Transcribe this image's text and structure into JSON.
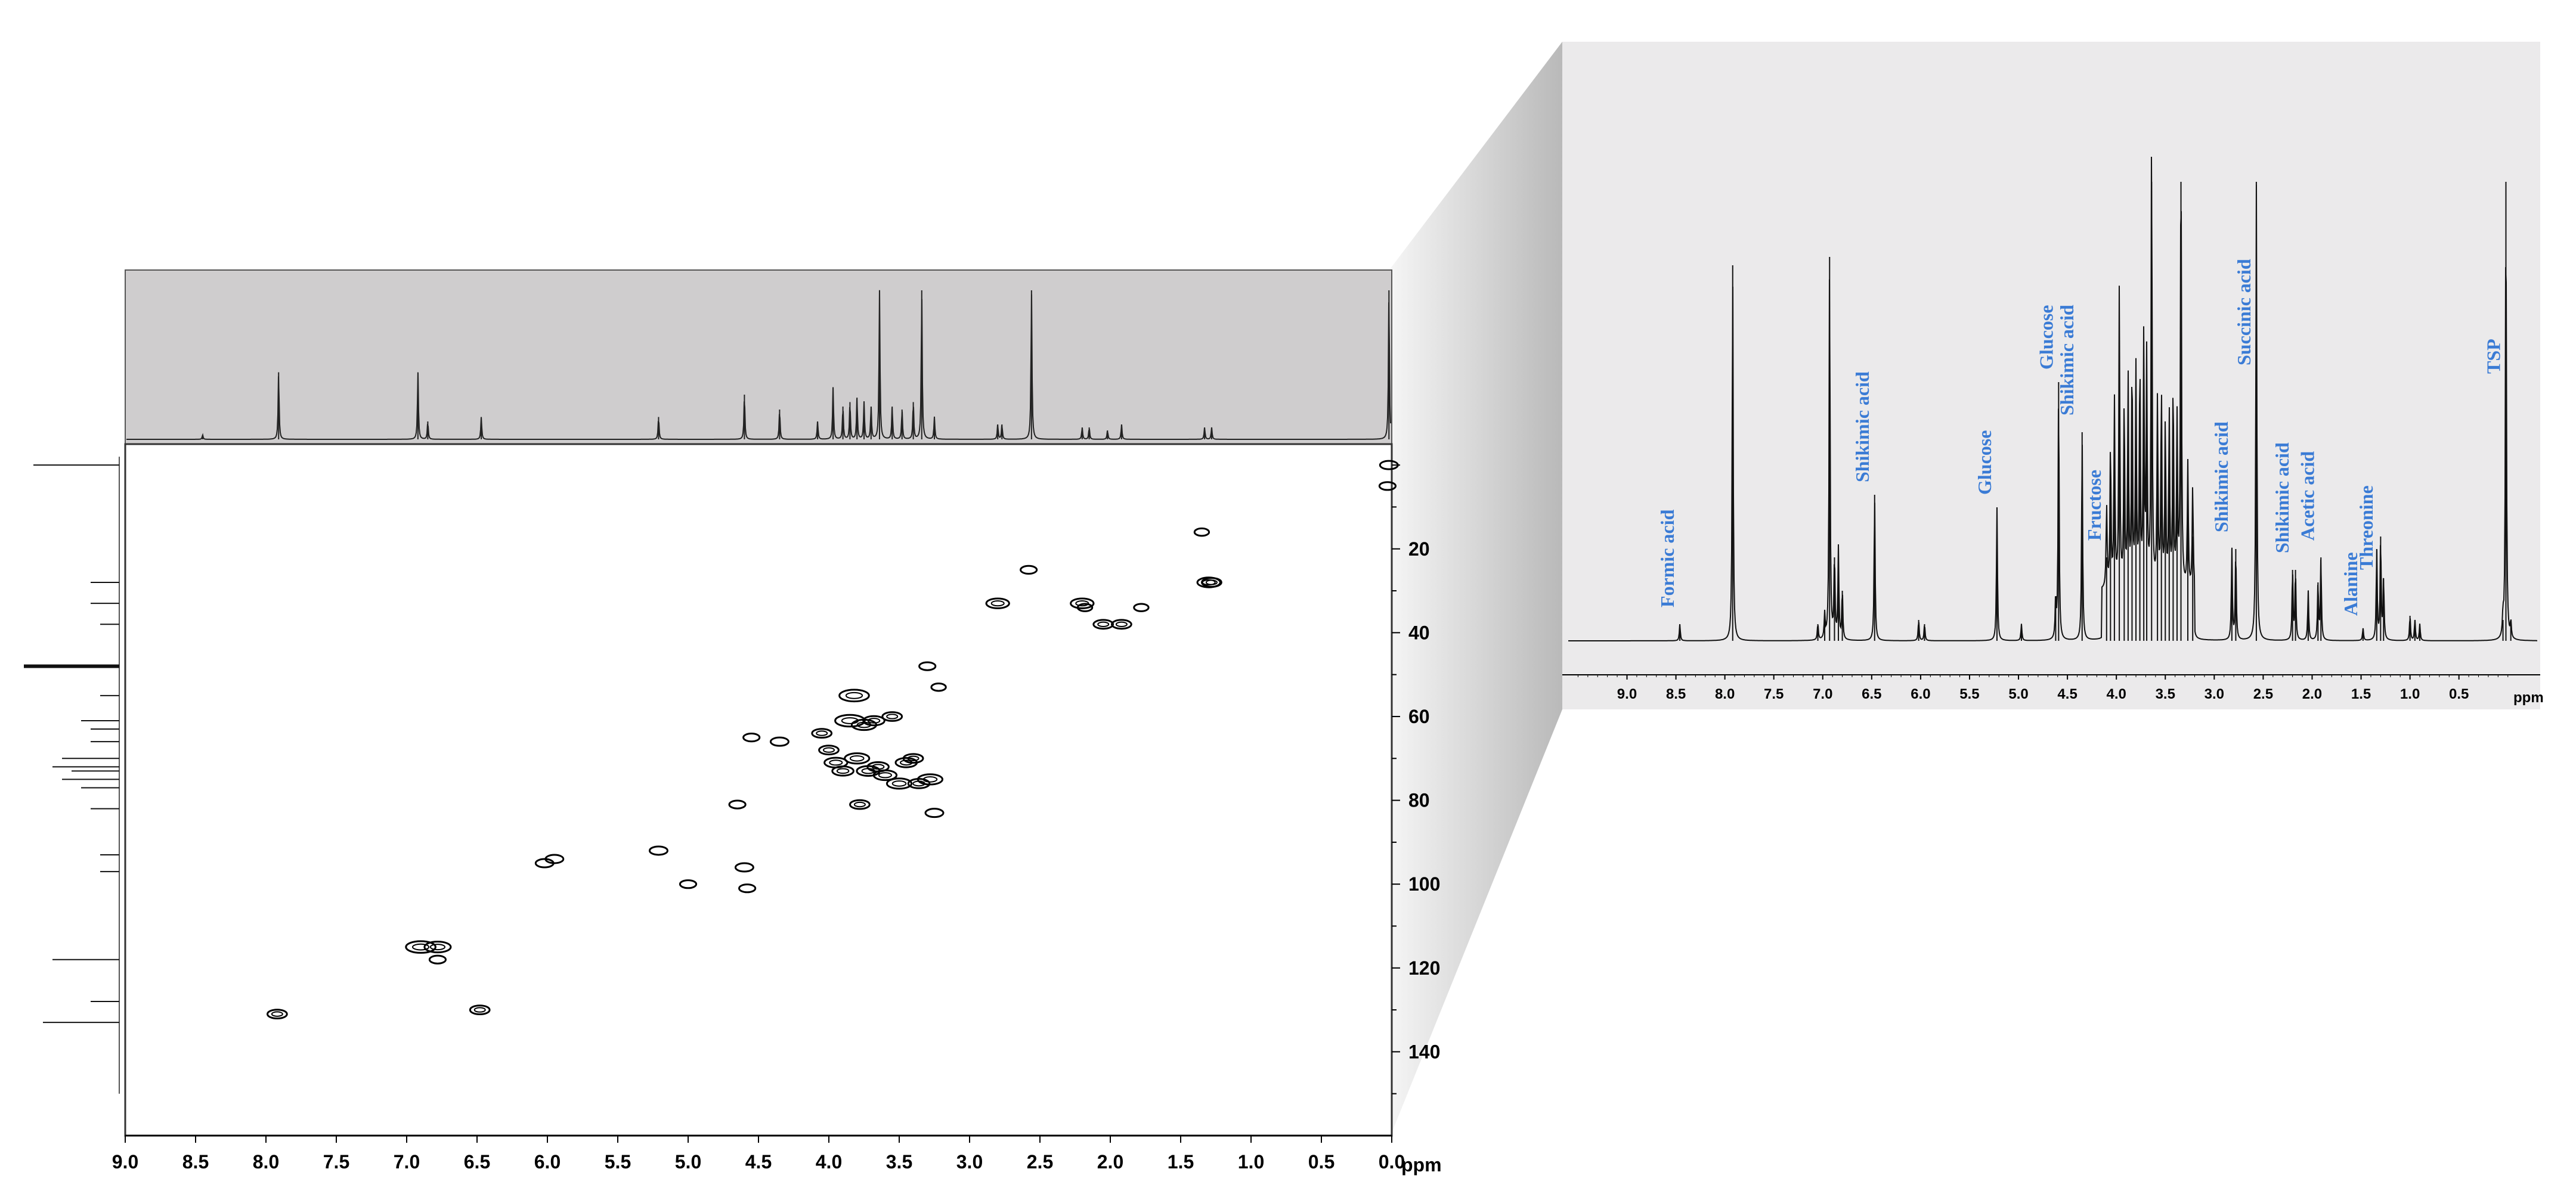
{
  "chart_data": [
    {
      "type": "heatmap",
      "subtype": "2D HSQC NMR contour plot with 1D projections",
      "x_axis": {
        "label": "ppm",
        "range": [
          9.0,
          0.0
        ],
        "reversed": true,
        "ticks": [
          "9.0",
          "8.5",
          "8.0",
          "7.5",
          "7.0",
          "6.5",
          "6.0",
          "5.5",
          "5.0",
          "4.5",
          "4.0",
          "3.5",
          "3.0",
          "2.5",
          "2.0",
          "1.5",
          "1.0",
          "0.5",
          "0.0"
        ]
      },
      "y_axis": {
        "label": "",
        "range": [
          -5,
          160
        ],
        "reversed": true,
        "position": "right",
        "ticks": [
          "20",
          "40",
          "60",
          "80",
          "100",
          "120",
          "140"
        ]
      },
      "grid": false,
      "top_projection_peaks": [
        {
          "ppm": 8.45,
          "h": 0.03
        },
        {
          "ppm": 7.91,
          "h": 0.45
        },
        {
          "ppm": 6.92,
          "h": 0.45
        },
        {
          "ppm": 6.85,
          "h": 0.12
        },
        {
          "ppm": 6.47,
          "h": 0.15
        },
        {
          "ppm": 5.21,
          "h": 0.15
        },
        {
          "ppm": 4.6,
          "h": 0.3
        },
        {
          "ppm": 4.35,
          "h": 0.2
        },
        {
          "ppm": 4.08,
          "h": 0.12
        },
        {
          "ppm": 3.97,
          "h": 0.35
        },
        {
          "ppm": 3.9,
          "h": 0.22
        },
        {
          "ppm": 3.85,
          "h": 0.25
        },
        {
          "ppm": 3.8,
          "h": 0.28
        },
        {
          "ppm": 3.75,
          "h": 0.25
        },
        {
          "ppm": 3.7,
          "h": 0.22
        },
        {
          "ppm": 3.64,
          "h": 1.0
        },
        {
          "ppm": 3.55,
          "h": 0.22
        },
        {
          "ppm": 3.48,
          "h": 0.2
        },
        {
          "ppm": 3.4,
          "h": 0.25
        },
        {
          "ppm": 3.34,
          "h": 1.0
        },
        {
          "ppm": 3.25,
          "h": 0.15
        },
        {
          "ppm": 2.8,
          "h": 0.1
        },
        {
          "ppm": 2.77,
          "h": 0.1
        },
        {
          "ppm": 2.56,
          "h": 1.0
        },
        {
          "ppm": 2.2,
          "h": 0.08
        },
        {
          "ppm": 2.15,
          "h": 0.08
        },
        {
          "ppm": 2.02,
          "h": 0.06
        },
        {
          "ppm": 1.92,
          "h": 0.1
        },
        {
          "ppm": 1.33,
          "h": 0.08
        },
        {
          "ppm": 1.28,
          "h": 0.08
        },
        {
          "ppm": 0.02,
          "h": 1.0
        }
      ],
      "left_projection_peaks": [
        {
          "ppm13c": 0,
          "h": 0.9
        },
        {
          "ppm13c": 28,
          "h": 0.3
        },
        {
          "ppm13c": 33,
          "h": 0.3
        },
        {
          "ppm13c": 38,
          "h": 0.2
        },
        {
          "ppm13c": 48,
          "h": 1.0
        },
        {
          "ppm13c": 55,
          "h": 0.2
        },
        {
          "ppm13c": 61,
          "h": 0.4
        },
        {
          "ppm13c": 63,
          "h": 0.3
        },
        {
          "ppm13c": 66,
          "h": 0.3
        },
        {
          "ppm13c": 70,
          "h": 0.6
        },
        {
          "ppm13c": 72,
          "h": 0.7
        },
        {
          "ppm13c": 73,
          "h": 0.5
        },
        {
          "ppm13c": 75,
          "h": 0.6
        },
        {
          "ppm13c": 77,
          "h": 0.4
        },
        {
          "ppm13c": 82,
          "h": 0.3
        },
        {
          "ppm13c": 93,
          "h": 0.2
        },
        {
          "ppm13c": 97,
          "h": 0.2
        },
        {
          "ppm13c": 118,
          "h": 0.7
        },
        {
          "ppm13c": 128,
          "h": 0.3
        },
        {
          "ppm13c": 133,
          "h": 0.8
        }
      ],
      "cross_peaks": [
        {
          "h1": 0.02,
          "c13": 0,
          "w": 0.5
        },
        {
          "h1": 0.03,
          "c13": 5,
          "w": 0.4
        },
        {
          "h1": 7.92,
          "c13": 131,
          "w": 0.6
        },
        {
          "h1": 6.9,
          "c13": 115,
          "w": 1.2
        },
        {
          "h1": 6.78,
          "c13": 115,
          "w": 1.0
        },
        {
          "h1": 6.78,
          "c13": 118,
          "w": 0.4
        },
        {
          "h1": 6.48,
          "c13": 130,
          "w": 0.6
        },
        {
          "h1": 6.02,
          "c13": 95,
          "w": 0.5
        },
        {
          "h1": 5.95,
          "c13": 94,
          "w": 0.5
        },
        {
          "h1": 5.21,
          "c13": 92,
          "w": 0.5
        },
        {
          "h1": 5.0,
          "c13": 100,
          "w": 0.4
        },
        {
          "h1": 4.65,
          "c13": 81,
          "w": 0.4
        },
        {
          "h1": 4.6,
          "c13": 96,
          "w": 0.5
        },
        {
          "h1": 4.58,
          "c13": 101,
          "w": 0.4
        },
        {
          "h1": 4.55,
          "c13": 65,
          "w": 0.4
        },
        {
          "h1": 4.35,
          "c13": 66,
          "w": 0.5
        },
        {
          "h1": 4.05,
          "c13": 64,
          "w": 0.6
        },
        {
          "h1": 4.0,
          "c13": 68,
          "w": 0.6
        },
        {
          "h1": 3.95,
          "c13": 71,
          "w": 0.8
        },
        {
          "h1": 3.9,
          "c13": 73,
          "w": 0.7
        },
        {
          "h1": 3.85,
          "c13": 61,
          "w": 1.2
        },
        {
          "h1": 3.82,
          "c13": 55,
          "w": 1.2
        },
        {
          "h1": 3.8,
          "c13": 70,
          "w": 0.9
        },
        {
          "h1": 3.78,
          "c13": 81,
          "w": 0.6
        },
        {
          "h1": 3.75,
          "c13": 62,
          "w": 0.9
        },
        {
          "h1": 3.72,
          "c13": 73,
          "w": 0.8
        },
        {
          "h1": 3.68,
          "c13": 61,
          "w": 0.7
        },
        {
          "h1": 3.65,
          "c13": 72,
          "w": 0.7
        },
        {
          "h1": 3.6,
          "c13": 74,
          "w": 0.8
        },
        {
          "h1": 3.55,
          "c13": 60,
          "w": 0.6
        },
        {
          "h1": 3.5,
          "c13": 76,
          "w": 0.9
        },
        {
          "h1": 3.45,
          "c13": 71,
          "w": 0.7
        },
        {
          "h1": 3.4,
          "c13": 70,
          "w": 0.6
        },
        {
          "h1": 3.36,
          "c13": 76,
          "w": 0.7
        },
        {
          "h1": 3.3,
          "c13": 48,
          "w": 0.4
        },
        {
          "h1": 3.28,
          "c13": 75,
          "w": 0.9
        },
        {
          "h1": 3.25,
          "c13": 83,
          "w": 0.5
        },
        {
          "h1": 3.22,
          "c13": 53,
          "w": 0.3
        },
        {
          "h1": 2.8,
          "c13": 33,
          "w": 0.8
        },
        {
          "h1": 2.58,
          "c13": 25,
          "w": 0.4
        },
        {
          "h1": 2.2,
          "c13": 33,
          "w": 0.8
        },
        {
          "h1": 2.18,
          "c13": 34,
          "w": 0.3
        },
        {
          "h1": 2.05,
          "c13": 38,
          "w": 0.6
        },
        {
          "h1": 1.92,
          "c13": 38,
          "w": 0.6
        },
        {
          "h1": 1.78,
          "c13": 34,
          "w": 0.3
        },
        {
          "h1": 1.35,
          "c13": 16,
          "w": 0.3
        },
        {
          "h1": 1.3,
          "c13": 28,
          "w": 0.8
        },
        {
          "h1": 1.28,
          "c13": 28,
          "w": 0.6
        }
      ]
    },
    {
      "type": "line",
      "subtype": "1D 1H NMR spectrum (zoomed inset)",
      "x_axis": {
        "label": "ppm",
        "range": [
          9.6,
          -0.3
        ],
        "reversed": true,
        "ticks": [
          "9.0",
          "8.5",
          "8.0",
          "7.5",
          "7.0",
          "6.5",
          "6.0",
          "5.5",
          "5.0",
          "4.5",
          "4.0",
          "3.5",
          "3.0",
          "2.5",
          "2.0",
          "1.5",
          "1.0",
          "0.5"
        ]
      },
      "grid": false,
      "peaks": [
        {
          "ppm": 8.46,
          "h": 0.04
        },
        {
          "ppm": 7.92,
          "h": 0.9
        },
        {
          "ppm": 7.05,
          "h": 0.04
        },
        {
          "ppm": 6.98,
          "h": 0.06
        },
        {
          "ppm": 6.93,
          "h": 0.92
        },
        {
          "ppm": 6.88,
          "h": 0.2
        },
        {
          "ppm": 6.84,
          "h": 0.22
        },
        {
          "ppm": 6.8,
          "h": 0.12
        },
        {
          "ppm": 6.47,
          "h": 0.35
        },
        {
          "ppm": 6.02,
          "h": 0.05
        },
        {
          "ppm": 5.96,
          "h": 0.04
        },
        {
          "ppm": 5.22,
          "h": 0.32
        },
        {
          "ppm": 4.97,
          "h": 0.04
        },
        {
          "ppm": 4.62,
          "h": 0.1
        },
        {
          "ppm": 4.59,
          "h": 0.62
        },
        {
          "ppm": 4.35,
          "h": 0.5
        },
        {
          "ppm": 4.1,
          "h": 0.2
        },
        {
          "ppm": 4.06,
          "h": 0.35
        },
        {
          "ppm": 4.02,
          "h": 0.45
        },
        {
          "ppm": 3.97,
          "h": 0.72
        },
        {
          "ppm": 3.92,
          "h": 0.45
        },
        {
          "ppm": 3.88,
          "h": 0.5
        },
        {
          "ppm": 3.84,
          "h": 0.55
        },
        {
          "ppm": 3.8,
          "h": 0.52
        },
        {
          "ppm": 3.76,
          "h": 0.55
        },
        {
          "ppm": 3.72,
          "h": 0.6
        },
        {
          "ppm": 3.69,
          "h": 0.55
        },
        {
          "ppm": 3.64,
          "h": 1.1
        },
        {
          "ppm": 3.58,
          "h": 0.45
        },
        {
          "ppm": 3.54,
          "h": 0.48
        },
        {
          "ppm": 3.5,
          "h": 0.4
        },
        {
          "ppm": 3.46,
          "h": 0.42
        },
        {
          "ppm": 3.42,
          "h": 0.5
        },
        {
          "ppm": 3.38,
          "h": 0.4
        },
        {
          "ppm": 3.34,
          "h": 1.1
        },
        {
          "ppm": 3.27,
          "h": 0.3
        },
        {
          "ppm": 3.22,
          "h": 0.25
        },
        {
          "ppm": 2.82,
          "h": 0.22
        },
        {
          "ppm": 2.78,
          "h": 0.22
        },
        {
          "ppm": 2.57,
          "h": 1.1
        },
        {
          "ppm": 2.2,
          "h": 0.17
        },
        {
          "ppm": 2.17,
          "h": 0.17
        },
        {
          "ppm": 2.04,
          "h": 0.12
        },
        {
          "ppm": 1.94,
          "h": 0.14
        },
        {
          "ppm": 1.91,
          "h": 0.2
        },
        {
          "ppm": 1.48,
          "h": 0.03
        },
        {
          "ppm": 1.34,
          "h": 0.22
        },
        {
          "ppm": 1.3,
          "h": 0.25
        },
        {
          "ppm": 1.27,
          "h": 0.15
        },
        {
          "ppm": 1.0,
          "h": 0.06
        },
        {
          "ppm": 0.95,
          "h": 0.05
        },
        {
          "ppm": 0.9,
          "h": 0.04
        },
        {
          "ppm": 0.05,
          "h": 0.05
        },
        {
          "ppm": 0.02,
          "h": 1.1
        },
        {
          "ppm": -0.03,
          "h": 0.04
        }
      ],
      "annotations": [
        {
          "text": "Formic acid",
          "ppm": 8.46,
          "h": 0.06
        },
        {
          "text": "Shikimic acid",
          "ppm": 6.47,
          "h": 0.36
        },
        {
          "text": "Glucose",
          "ppm": 5.22,
          "h": 0.33
        },
        {
          "text": "Glucose",
          "ppm": 4.59,
          "h": 0.63
        },
        {
          "text": "Shikimic acid",
          "ppm": 4.38,
          "h": 0.52
        },
        {
          "text": "Fructose",
          "ppm": 4.1,
          "h": 0.22
        },
        {
          "text": "Shikimic acid",
          "ppm": 2.8,
          "h": 0.24
        },
        {
          "text": "Succinic acid",
          "ppm": 2.57,
          "h": 0.64
        },
        {
          "text": "Shikimic acid",
          "ppm": 2.18,
          "h": 0.19
        },
        {
          "text": "Acetic acid",
          "ppm": 1.92,
          "h": 0.22
        },
        {
          "text": "Alanine",
          "ppm": 1.48,
          "h": 0.04
        },
        {
          "text": "Threonine",
          "ppm": 1.32,
          "h": 0.15
        },
        {
          "text": "TSP",
          "ppm": 0.02,
          "h": 0.62
        }
      ]
    }
  ]
}
